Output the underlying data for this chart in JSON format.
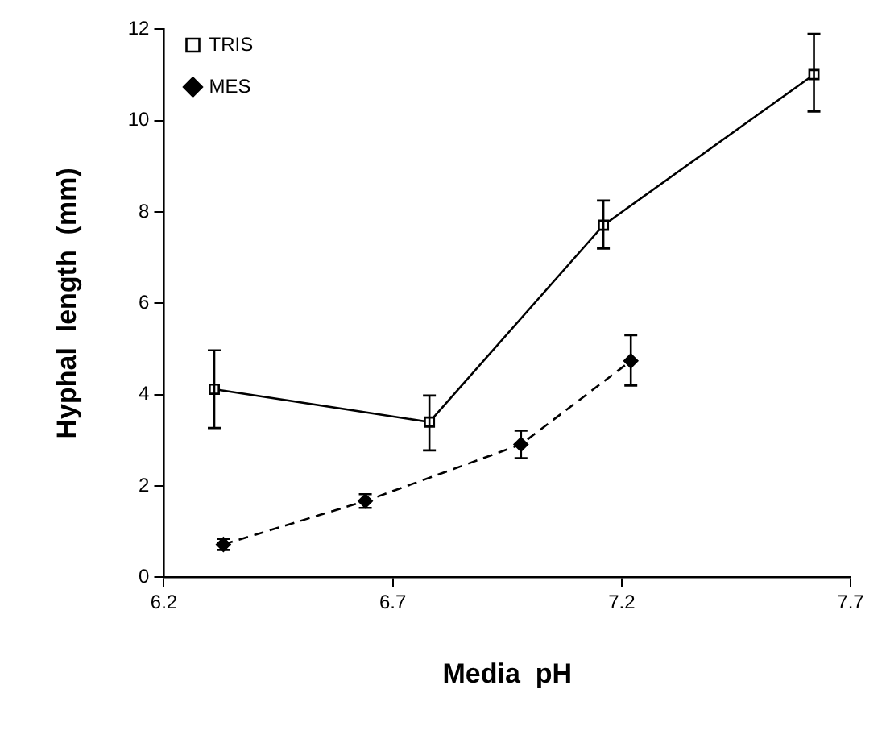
{
  "chart_data": {
    "type": "line",
    "xlabel": "Media  pH",
    "ylabel": "Hyphal  length  (mm)",
    "xlim": [
      6.2,
      7.7
    ],
    "xticks": [
      6.2,
      6.7,
      7.2,
      7.7
    ],
    "ylim": [
      0,
      12
    ],
    "yticks": [
      0,
      2,
      4,
      6,
      8,
      10,
      12
    ],
    "grid": false,
    "legend": "top left",
    "series": [
      {
        "name": "TRIS",
        "color": "#000000",
        "marker": "square",
        "line_style": "solid",
        "x": [
          6.31,
          6.78,
          7.16,
          7.62
        ],
        "values": [
          4.12,
          3.4,
          7.71,
          11.01
        ],
        "errors": [
          [
            3.27,
            4.97
          ],
          [
            2.78,
            3.98
          ],
          [
            7.2,
            8.25
          ],
          [
            10.2,
            11.9
          ]
        ]
      },
      {
        "name": "MES",
        "color": "#000000",
        "marker": "diamond",
        "line_style": "dashed",
        "x": [
          6.33,
          6.64,
          6.98,
          7.22
        ],
        "values": [
          0.72,
          1.67,
          2.91,
          4.74
        ],
        "errors": [
          [
            0.6,
            0.84
          ],
          [
            1.52,
            1.82
          ],
          [
            2.61,
            3.21
          ],
          [
            4.2,
            5.3
          ]
        ]
      }
    ]
  }
}
